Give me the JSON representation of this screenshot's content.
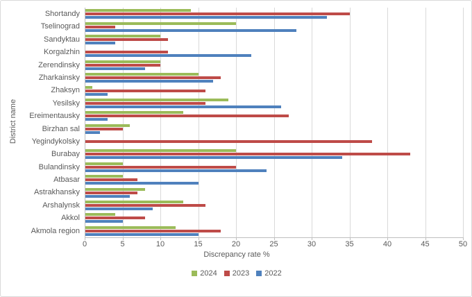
{
  "chart_data": {
    "type": "bar",
    "orientation": "horizontal",
    "xlabel": "Discrepancy rate %",
    "ylabel": "District name",
    "xlim": [
      0,
      50
    ],
    "xticks": [
      0,
      5,
      10,
      15,
      20,
      25,
      30,
      35,
      40,
      45,
      50
    ],
    "grid": true,
    "legend_position": "bottom",
    "categories": [
      "Shortandy",
      "Tselinograd",
      "Sandyktau",
      "Korgalzhin",
      "Zerendinsky",
      "Zharkainsky",
      "Zhaksyn",
      "Yesilsky",
      "Ereimentausky",
      "Birzhan sal",
      "Yegindykolsky",
      "Burabay",
      "Bulandinsky",
      "Atbasar",
      "Astrakhansky",
      "Arshalynsk",
      "Akkol",
      "Akmola region"
    ],
    "series": [
      {
        "name": "2024",
        "color": "#9bbb59",
        "values": [
          14,
          20,
          10,
          0,
          10,
          15,
          1,
          19,
          13,
          6,
          0,
          20,
          5,
          5,
          8,
          13,
          4,
          12
        ]
      },
      {
        "name": "2023",
        "color": "#be4b48",
        "values": [
          35,
          4,
          11,
          11,
          10,
          18,
          16,
          16,
          27,
          5,
          38,
          43,
          20,
          7,
          7,
          16,
          8,
          18
        ]
      },
      {
        "name": "2022",
        "color": "#4f81bd",
        "values": [
          32,
          28,
          4,
          22,
          8,
          17,
          3,
          26,
          3,
          2,
          0,
          34,
          24,
          15,
          6,
          9,
          5,
          15
        ]
      }
    ]
  },
  "colors": {
    "grid": "#d9d9d9",
    "axis": "#bfbfbf",
    "text": "#595959",
    "background": "#ffffff"
  }
}
